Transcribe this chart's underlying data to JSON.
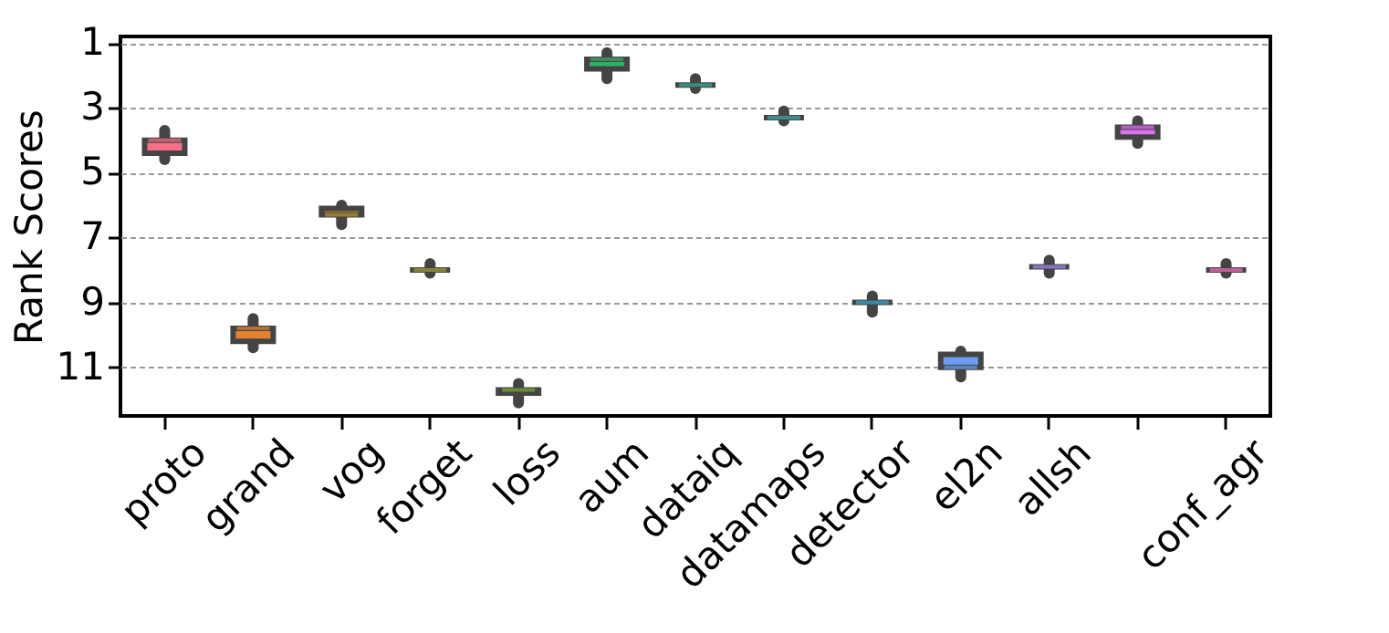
{
  "chart_data": {
    "type": "box",
    "ylabel": "Rank Scores",
    "categories": [
      "proto",
      "grand",
      "vog",
      "forget",
      "loss",
      "aum",
      "dataiq",
      "datamaps",
      "detector",
      "el2n",
      "allsh",
      null,
      "conf_agr"
    ],
    "boxes": [
      {
        "low": 3.7,
        "q1": 4.0,
        "median": 4.0,
        "q3": 4.4,
        "high": 4.6
      },
      {
        "low": 9.5,
        "q1": 9.8,
        "median": 9.8,
        "q3": 10.2,
        "high": 10.4
      },
      {
        "low": 6.0,
        "q1": 6.1,
        "median": 6.3,
        "q3": 6.3,
        "high": 6.6
      },
      {
        "low": 7.8,
        "q1": 8.0,
        "median": 8.0,
        "q3": 8.0,
        "high": 8.1
      },
      {
        "low": 11.5,
        "q1": 11.7,
        "median": 11.7,
        "q3": 11.8,
        "high": 12.1
      },
      {
        "low": 1.3,
        "q1": 1.5,
        "median": 1.5,
        "q3": 1.8,
        "high": 2.1
      },
      {
        "low": 2.1,
        "q1": 2.3,
        "median": 2.3,
        "q3": 2.3,
        "high": 2.4
      },
      {
        "low": 3.1,
        "q1": 3.3,
        "median": 3.3,
        "q3": 3.3,
        "high": 3.4
      },
      {
        "low": 8.8,
        "q1": 9.0,
        "median": 9.0,
        "q3": 9.0,
        "high": 9.3
      },
      {
        "low": 10.5,
        "q1": 10.6,
        "median": 11.0,
        "q3": 11.0,
        "high": 11.3
      },
      {
        "low": 7.7,
        "q1": 7.9,
        "median": 7.9,
        "q3": 7.9,
        "high": 8.1
      },
      {
        "low": 3.4,
        "q1": 3.6,
        "median": 3.6,
        "q3": 3.9,
        "high": 4.1
      },
      {
        "low": 7.8,
        "q1": 8.0,
        "median": 8.0,
        "q3": 8.0,
        "high": 8.1
      }
    ],
    "colors": [
      "#f77189",
      "#e5802f",
      "#c29431",
      "#a39f31",
      "#7ca931",
      "#32b165",
      "#35ad95",
      "#37abb0",
      "#39a7cd",
      "#6e9bf4",
      "#a48cf4",
      "#e16ff4",
      "#f66bbc"
    ],
    "ylim": [
      12.5,
      0.8
    ],
    "yticks": [
      1,
      3,
      5,
      7,
      9,
      11
    ],
    "grid": "y"
  }
}
